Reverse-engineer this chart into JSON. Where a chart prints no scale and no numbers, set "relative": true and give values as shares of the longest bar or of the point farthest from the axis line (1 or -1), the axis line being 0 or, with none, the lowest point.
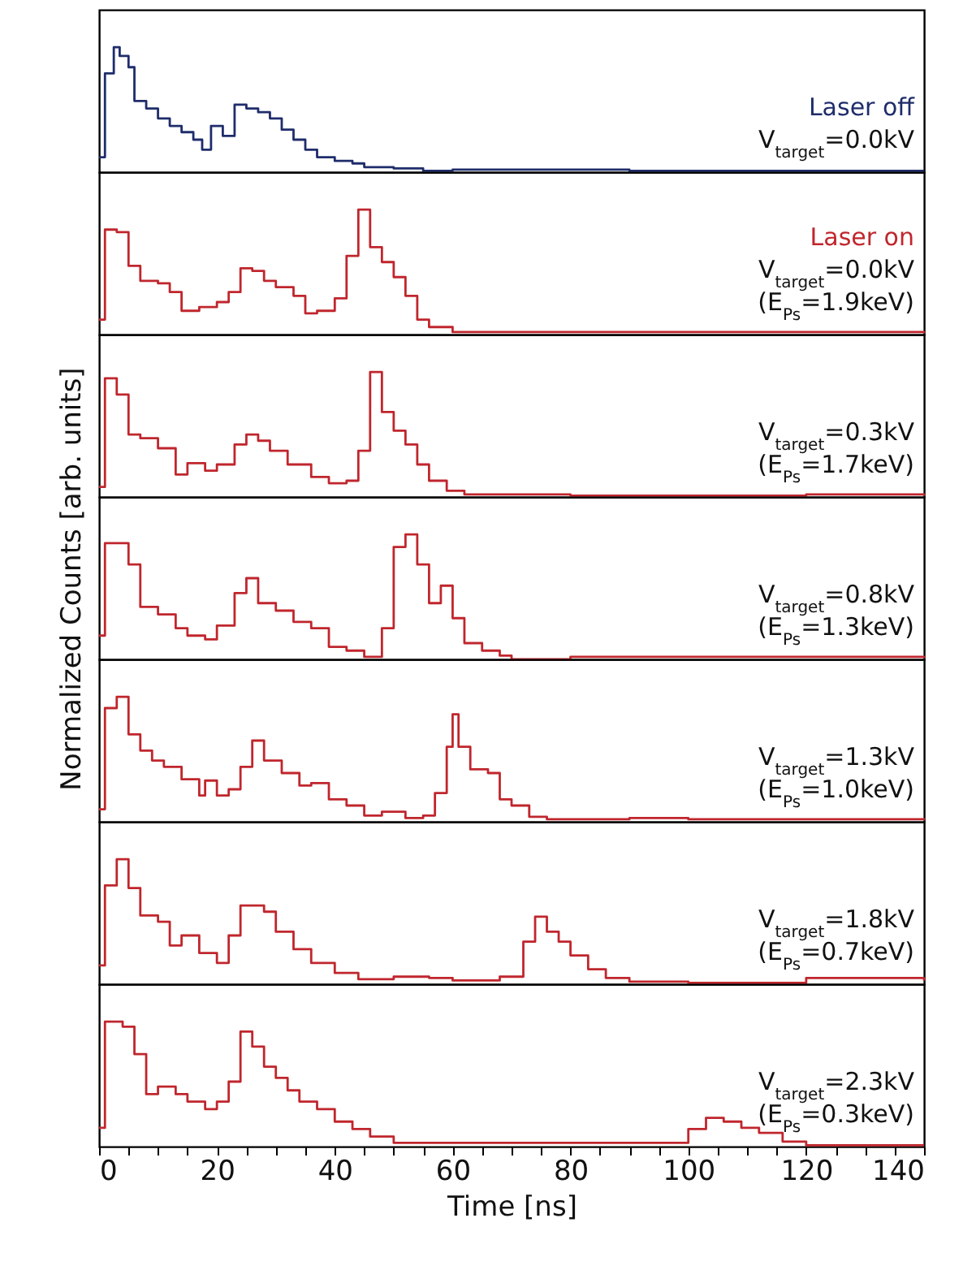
{
  "chart_data": [
    {
      "type": "step",
      "relative": true,
      "xlim": [
        0,
        140
      ],
      "tick_labels": false,
      "annotations": [
        "V$_{target}$=0.0kV"
      ],
      "x": [
        0,
        1,
        2.5,
        3.5,
        5,
        6,
        8,
        10,
        12,
        14,
        16,
        17.5,
        19,
        21,
        23,
        25,
        27,
        29,
        31,
        33,
        35,
        37,
        40,
        43,
        45,
        50,
        55,
        60,
        70,
        80,
        90,
        100,
        110,
        120,
        130,
        140
      ],
      "series": [
        {
          "name": "Laser off",
          "color": "#1f2d6b",
          "values": [
            0.12,
            0.79,
            1.0,
            0.93,
            0.84,
            0.57,
            0.51,
            0.43,
            0.37,
            0.32,
            0.26,
            0.18,
            0.37,
            0.29,
            0.54,
            0.51,
            0.48,
            0.43,
            0.34,
            0.26,
            0.18,
            0.12,
            0.09,
            0.07,
            0.04,
            0.03,
            0.01,
            0.02,
            0.02,
            0.02,
            0.01,
            0.01,
            0.01,
            0.01,
            0.01,
            0.01
          ]
        }
      ]
    },
    {
      "type": "step",
      "relative": true,
      "xlim": [
        0,
        140
      ],
      "tick_labels": false,
      "annotations": [
        "V$_{target}$=0.0kV",
        "(E$_{Ps}$=1.9keV)"
      ],
      "x": [
        0,
        1,
        3,
        5,
        7,
        10,
        12,
        14,
        17,
        20,
        22,
        24,
        26,
        28,
        30,
        33,
        35,
        37,
        40,
        42,
        44,
        46,
        48,
        50,
        52,
        54,
        56,
        60,
        70,
        80,
        100,
        140
      ],
      "series": [
        {
          "name": "Laser on",
          "color": "#c0262d",
          "values": [
            0.12,
            0.84,
            0.82,
            0.55,
            0.43,
            0.41,
            0.34,
            0.19,
            0.22,
            0.26,
            0.34,
            0.53,
            0.51,
            0.43,
            0.38,
            0.31,
            0.17,
            0.19,
            0.29,
            0.63,
            1.0,
            0.7,
            0.58,
            0.46,
            0.31,
            0.12,
            0.06,
            0.02,
            0.02,
            0.02,
            0.02,
            0.01
          ]
        }
      ]
    },
    {
      "type": "step",
      "relative": true,
      "xlim": [
        0,
        140
      ],
      "tick_labels": false,
      "annotations": [
        "V$_{target}$=0.3kV",
        "(E$_{Ps}$=1.7keV)"
      ],
      "x": [
        0,
        1,
        3,
        5,
        7,
        10,
        13,
        15,
        18,
        20,
        23,
        25,
        27,
        29,
        32,
        36,
        39,
        42,
        44,
        46,
        48,
        50,
        52,
        54,
        56,
        59,
        62,
        80,
        100,
        120,
        140
      ],
      "series": [
        {
          "color": "#c0262d",
          "values": [
            0.08,
            0.95,
            0.82,
            0.5,
            0.47,
            0.39,
            0.18,
            0.27,
            0.21,
            0.26,
            0.42,
            0.5,
            0.45,
            0.37,
            0.26,
            0.16,
            0.11,
            0.13,
            0.37,
            1.0,
            0.68,
            0.53,
            0.42,
            0.26,
            0.13,
            0.05,
            0.02,
            0.01,
            0.01,
            0.02,
            0.01
          ]
        }
      ]
    },
    {
      "type": "step",
      "relative": true,
      "xlim": [
        0,
        140
      ],
      "tick_labels": false,
      "ylabel": "Normalized Counts [arb. units]",
      "annotations": [
        "V$_{target}$=0.8kV",
        "(E$_{Ps}$=1.3keV)"
      ],
      "x": [
        0,
        1,
        3,
        5,
        7,
        10,
        13,
        15,
        18,
        20,
        23,
        25,
        27,
        30,
        33,
        36,
        39,
        42,
        45,
        48,
        50,
        52,
        54,
        56,
        58,
        60,
        62,
        65,
        68,
        70,
        80,
        100,
        120,
        140
      ],
      "series": [
        {
          "color": "#c0262d",
          "values": [
            0.19,
            0.93,
            0.93,
            0.76,
            0.42,
            0.36,
            0.25,
            0.19,
            0.16,
            0.27,
            0.53,
            0.65,
            0.45,
            0.39,
            0.3,
            0.25,
            0.1,
            0.07,
            0.02,
            0.25,
            0.9,
            1.0,
            0.76,
            0.45,
            0.59,
            0.33,
            0.13,
            0.07,
            0.03,
            0,
            0.02,
            0.02,
            0.02,
            0.01
          ]
        }
      ]
    },
    {
      "type": "step",
      "relative": true,
      "xlim": [
        0,
        140
      ],
      "tick_labels": false,
      "annotations": [
        "V$_{target}$=1.3kV",
        "(E$_{Ps}$=1.0keV)"
      ],
      "x": [
        0,
        1,
        3,
        5,
        7,
        9,
        11,
        14,
        17,
        18,
        20,
        22,
        24,
        26,
        28,
        31,
        34,
        36,
        39,
        42,
        45,
        48,
        52,
        55,
        57,
        59,
        60,
        61,
        63,
        66,
        68,
        70,
        73,
        76,
        90,
        100,
        120,
        140
      ],
      "series": [
        {
          "color": "#c0262d",
          "values": [
            0.1,
            0.91,
            1.0,
            0.7,
            0.57,
            0.49,
            0.44,
            0.34,
            0.21,
            0.33,
            0.21,
            0.26,
            0.44,
            0.65,
            0.49,
            0.39,
            0.29,
            0.31,
            0.18,
            0.13,
            0.05,
            0.08,
            0.03,
            0.05,
            0.23,
            0.6,
            0.86,
            0.6,
            0.42,
            0.39,
            0.18,
            0.13,
            0.04,
            0.02,
            0.03,
            0.02,
            0.02,
            0.03
          ]
        }
      ]
    },
    {
      "type": "step",
      "relative": true,
      "xlim": [
        0,
        140
      ],
      "tick_labels": false,
      "annotations": [
        "V$_{target}$=1.8kV",
        "(E$_{Ps}$=0.7keV)"
      ],
      "x": [
        0,
        1,
        3,
        5,
        7,
        10,
        12,
        14,
        17,
        20,
        22,
        24,
        26,
        28,
        30,
        33,
        36,
        40,
        44,
        50,
        56,
        60,
        68,
        72,
        74,
        76,
        78,
        80,
        83,
        86,
        90,
        100,
        120,
        140
      ],
      "series": [
        {
          "color": "#c0262d",
          "values": [
            0.15,
            0.79,
            1.0,
            0.77,
            0.55,
            0.5,
            0.31,
            0.39,
            0.25,
            0.17,
            0.39,
            0.63,
            0.63,
            0.58,
            0.42,
            0.28,
            0.17,
            0.09,
            0.04,
            0.06,
            0.05,
            0.03,
            0.06,
            0.34,
            0.54,
            0.42,
            0.34,
            0.23,
            0.12,
            0.05,
            0.02,
            0.01,
            0.05,
            0.03
          ]
        }
      ]
    },
    {
      "type": "step",
      "relative": true,
      "xlim": [
        0,
        140
      ],
      "tick_labels": "x",
      "xlabel": "Time [ns]",
      "annotations": [
        "V$_{target}$=2.3kV",
        "(E$_{Ps}$=0.3keV)"
      ],
      "xticks": [
        0,
        {
          "value": 5,
          "label": null
        },
        {
          "value": 10,
          "label": null
        },
        {
          "value": 15,
          "label": null
        },
        20,
        {
          "value": 25,
          "label": null
        },
        {
          "value": 30,
          "label": null
        },
        {
          "value": 35,
          "label": null
        },
        40,
        {
          "value": 45,
          "label": null
        },
        {
          "value": 50,
          "label": null
        },
        {
          "value": 55,
          "label": null
        },
        60,
        {
          "value": 65,
          "label": null
        },
        {
          "value": 70,
          "label": null
        },
        {
          "value": 75,
          "label": null
        },
        80,
        {
          "value": 85,
          "label": null
        },
        {
          "value": 90,
          "label": null
        },
        {
          "value": 95,
          "label": null
        },
        100,
        {
          "value": 105,
          "label": null
        },
        {
          "value": 110,
          "label": null
        },
        {
          "value": 115,
          "label": null
        },
        120,
        {
          "value": 125,
          "label": null
        },
        {
          "value": 130,
          "label": null
        },
        {
          "value": 135,
          "label": null
        },
        140
      ],
      "x": [
        0,
        1,
        4,
        6,
        8,
        10,
        13,
        15,
        18,
        20,
        22,
        24,
        26,
        28,
        30,
        32,
        34,
        37,
        40,
        43,
        46,
        50,
        60,
        80,
        95,
        100,
        103,
        106,
        109,
        112,
        116,
        120,
        140
      ],
      "series": [
        {
          "color": "#c0262d",
          "values": [
            0.15,
            1.0,
            0.96,
            0.74,
            0.42,
            0.48,
            0.42,
            0.36,
            0.3,
            0.36,
            0.52,
            0.92,
            0.8,
            0.64,
            0.55,
            0.45,
            0.36,
            0.3,
            0.2,
            0.14,
            0.08,
            0.03,
            0.03,
            0.03,
            0.03,
            0.14,
            0.23,
            0.2,
            0.15,
            0.11,
            0.04,
            0.01,
            0.01
          ]
        }
      ]
    }
  ]
}
